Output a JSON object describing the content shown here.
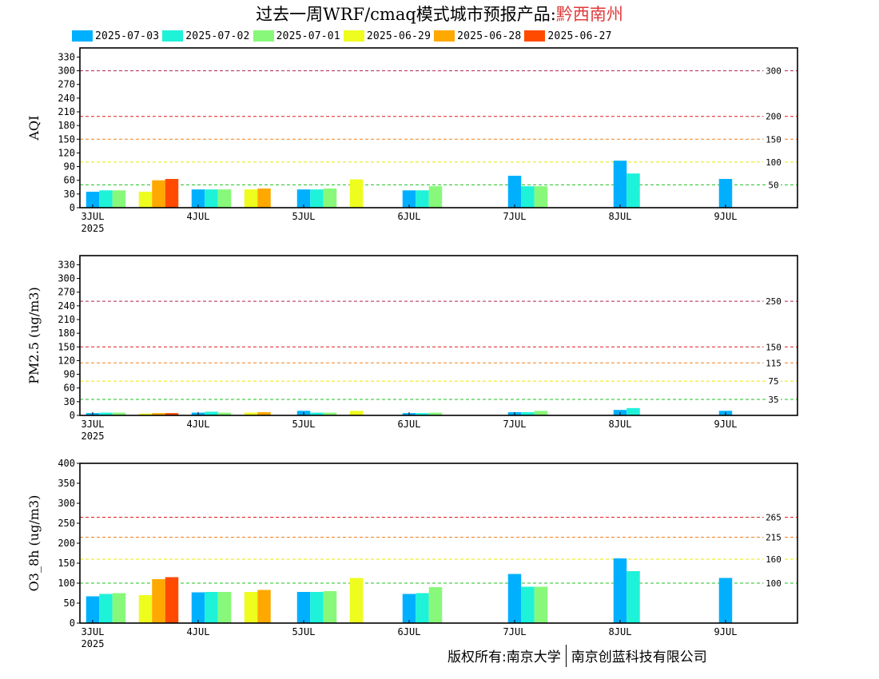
{
  "title": {
    "prefix": "过去一周WRF/cmaq模式城市预报产品:",
    "city": "黔西南州"
  },
  "legend": [
    {
      "label": "2025-07-03",
      "color": "#00b0ff"
    },
    {
      "label": "2025-07-02",
      "color": "#1ef2d8"
    },
    {
      "label": "2025-07-01",
      "color": "#88f87a"
    },
    {
      "label": "2025-06-29",
      "color": "#eefc1e"
    },
    {
      "label": "2025-06-28",
      "color": "#ffa800"
    },
    {
      "label": "2025-06-27",
      "color": "#ff4a00"
    }
  ],
  "x_ticks": [
    "3JUL",
    "4JUL",
    "5JUL",
    "6JUL",
    "7JUL",
    "8JUL",
    "9JUL"
  ],
  "x_year": "2025",
  "copyright": {
    "owner": "版权所有:南京大学",
    "company": "南京创蓝科技有限公司"
  },
  "chart_data": [
    {
      "type": "bar",
      "ylabel": "AQI",
      "ylim": [
        0,
        350
      ],
      "yticks": [
        0,
        30,
        60,
        90,
        120,
        150,
        180,
        210,
        240,
        270,
        300,
        330
      ],
      "thresholds": [
        {
          "value": 300,
          "label": "300",
          "color": "#b0205a"
        },
        {
          "value": 200,
          "label": "200",
          "color": "#e01c1c"
        },
        {
          "value": 150,
          "label": "150",
          "color": "#f08020"
        },
        {
          "value": 100,
          "label": "100",
          "color": "#e8e800"
        },
        {
          "value": 50,
          "label": "50",
          "color": "#20c020"
        }
      ],
      "groups": [
        {
          "x": "3JUL",
          "slot": 0,
          "bars": [
            {
              "series": "2025-07-03",
              "value": 35
            },
            {
              "series": "2025-07-02",
              "value": 38
            },
            {
              "series": "2025-07-01",
              "value": 38
            }
          ]
        },
        {
          "x": "3JUL",
          "slot": 1,
          "bars": [
            {
              "series": "2025-06-29",
              "value": 35
            },
            {
              "series": "2025-06-28",
              "value": 60
            },
            {
              "series": "2025-06-27",
              "value": 63
            }
          ]
        },
        {
          "x": "4JUL",
          "slot": 0,
          "bars": [
            {
              "series": "2025-07-03",
              "value": 40
            },
            {
              "series": "2025-07-02",
              "value": 40
            },
            {
              "series": "2025-07-01",
              "value": 40
            }
          ]
        },
        {
          "x": "4JUL",
          "slot": 1,
          "bars": [
            {
              "series": "2025-06-29",
              "value": 40
            },
            {
              "series": "2025-06-28",
              "value": 42
            }
          ]
        },
        {
          "x": "5JUL",
          "slot": 0,
          "bars": [
            {
              "series": "2025-07-03",
              "value": 40
            },
            {
              "series": "2025-07-02",
              "value": 40
            },
            {
              "series": "2025-07-01",
              "value": 42
            }
          ]
        },
        {
          "x": "5JUL",
          "slot": 1,
          "bars": [
            {
              "series": "2025-06-29",
              "value": 62
            }
          ]
        },
        {
          "x": "6JUL",
          "slot": 0,
          "bars": [
            {
              "series": "2025-07-03",
              "value": 38
            },
            {
              "series": "2025-07-02",
              "value": 38
            },
            {
              "series": "2025-07-01",
              "value": 47
            }
          ]
        },
        {
          "x": "7JUL",
          "slot": 0,
          "bars": [
            {
              "series": "2025-07-03",
              "value": 70
            },
            {
              "series": "2025-07-02",
              "value": 47
            },
            {
              "series": "2025-07-01",
              "value": 47
            }
          ]
        },
        {
          "x": "8JUL",
          "slot": 0,
          "bars": [
            {
              "series": "2025-07-03",
              "value": 103
            },
            {
              "series": "2025-07-02",
              "value": 75
            }
          ]
        },
        {
          "x": "9JUL",
          "slot": 0,
          "bars": [
            {
              "series": "2025-07-03",
              "value": 63
            }
          ]
        }
      ]
    },
    {
      "type": "bar",
      "ylabel": "PM2.5 (ug/m3)",
      "ylim": [
        0,
        350
      ],
      "yticks": [
        0,
        30,
        60,
        90,
        120,
        150,
        180,
        210,
        240,
        270,
        300,
        330
      ],
      "thresholds": [
        {
          "value": 250,
          "label": "250",
          "color": "#b0205a"
        },
        {
          "value": 150,
          "label": "150",
          "color": "#e01c1c"
        },
        {
          "value": 115,
          "label": "115",
          "color": "#f08020"
        },
        {
          "value": 75,
          "label": "75",
          "color": "#e8e800"
        },
        {
          "value": 35,
          "label": "35",
          "color": "#20c020"
        }
      ],
      "groups": [
        {
          "x": "3JUL",
          "slot": 0,
          "bars": [
            {
              "series": "2025-07-03",
              "value": 5
            },
            {
              "series": "2025-07-02",
              "value": 6
            },
            {
              "series": "2025-07-01",
              "value": 6
            }
          ]
        },
        {
          "x": "3JUL",
          "slot": 1,
          "bars": [
            {
              "series": "2025-06-29",
              "value": 4
            },
            {
              "series": "2025-06-28",
              "value": 5
            },
            {
              "series": "2025-06-27",
              "value": 5
            }
          ]
        },
        {
          "x": "4JUL",
          "slot": 0,
          "bars": [
            {
              "series": "2025-07-03",
              "value": 6
            },
            {
              "series": "2025-07-02",
              "value": 8
            },
            {
              "series": "2025-07-01",
              "value": 6
            }
          ]
        },
        {
          "x": "4JUL",
          "slot": 1,
          "bars": [
            {
              "series": "2025-06-29",
              "value": 6
            },
            {
              "series": "2025-06-28",
              "value": 7
            }
          ]
        },
        {
          "x": "5JUL",
          "slot": 0,
          "bars": [
            {
              "series": "2025-07-03",
              "value": 10
            },
            {
              "series": "2025-07-02",
              "value": 6
            },
            {
              "series": "2025-07-01",
              "value": 6
            }
          ]
        },
        {
          "x": "5JUL",
          "slot": 1,
          "bars": [
            {
              "series": "2025-06-29",
              "value": 10
            }
          ]
        },
        {
          "x": "6JUL",
          "slot": 0,
          "bars": [
            {
              "series": "2025-07-03",
              "value": 5
            },
            {
              "series": "2025-07-02",
              "value": 5
            },
            {
              "series": "2025-07-01",
              "value": 6
            }
          ]
        },
        {
          "x": "7JUL",
          "slot": 0,
          "bars": [
            {
              "series": "2025-07-03",
              "value": 7
            },
            {
              "series": "2025-07-02",
              "value": 7
            },
            {
              "series": "2025-07-01",
              "value": 10
            }
          ]
        },
        {
          "x": "8JUL",
          "slot": 0,
          "bars": [
            {
              "series": "2025-07-03",
              "value": 12
            },
            {
              "series": "2025-07-02",
              "value": 16
            }
          ]
        },
        {
          "x": "9JUL",
          "slot": 0,
          "bars": [
            {
              "series": "2025-07-03",
              "value": 10
            }
          ]
        }
      ]
    },
    {
      "type": "bar",
      "ylabel": "O3_8h (ug/m3)",
      "ylim": [
        0,
        400
      ],
      "yticks": [
        0,
        50,
        100,
        150,
        200,
        250,
        300,
        350,
        400
      ],
      "thresholds": [
        {
          "value": 265,
          "label": "265",
          "color": "#e01c1c"
        },
        {
          "value": 215,
          "label": "215",
          "color": "#f08020"
        },
        {
          "value": 160,
          "label": "160",
          "color": "#e8e800"
        },
        {
          "value": 100,
          "label": "100",
          "color": "#20c020"
        }
      ],
      "groups": [
        {
          "x": "3JUL",
          "slot": 0,
          "bars": [
            {
              "series": "2025-07-03",
              "value": 67
            },
            {
              "series": "2025-07-02",
              "value": 73
            },
            {
              "series": "2025-07-01",
              "value": 75
            }
          ]
        },
        {
          "x": "3JUL",
          "slot": 1,
          "bars": [
            {
              "series": "2025-06-29",
              "value": 70
            },
            {
              "series": "2025-06-28",
              "value": 110
            },
            {
              "series": "2025-06-27",
              "value": 115
            }
          ]
        },
        {
          "x": "4JUL",
          "slot": 0,
          "bars": [
            {
              "series": "2025-07-03",
              "value": 77
            },
            {
              "series": "2025-07-02",
              "value": 78
            },
            {
              "series": "2025-07-01",
              "value": 78
            }
          ]
        },
        {
          "x": "4JUL",
          "slot": 1,
          "bars": [
            {
              "series": "2025-06-29",
              "value": 78
            },
            {
              "series": "2025-06-28",
              "value": 83
            }
          ]
        },
        {
          "x": "5JUL",
          "slot": 0,
          "bars": [
            {
              "series": "2025-07-03",
              "value": 78
            },
            {
              "series": "2025-07-02",
              "value": 78
            },
            {
              "series": "2025-07-01",
              "value": 80
            }
          ]
        },
        {
          "x": "5JUL",
          "slot": 1,
          "bars": [
            {
              "series": "2025-06-29",
              "value": 113
            }
          ]
        },
        {
          "x": "6JUL",
          "slot": 0,
          "bars": [
            {
              "series": "2025-07-03",
              "value": 73
            },
            {
              "series": "2025-07-02",
              "value": 75
            },
            {
              "series": "2025-07-01",
              "value": 90
            }
          ]
        },
        {
          "x": "7JUL",
          "slot": 0,
          "bars": [
            {
              "series": "2025-07-03",
              "value": 123
            },
            {
              "series": "2025-07-02",
              "value": 91
            },
            {
              "series": "2025-07-01",
              "value": 91
            }
          ]
        },
        {
          "x": "8JUL",
          "slot": 0,
          "bars": [
            {
              "series": "2025-07-03",
              "value": 162
            },
            {
              "series": "2025-07-02",
              "value": 130
            }
          ]
        },
        {
          "x": "9JUL",
          "slot": 0,
          "bars": [
            {
              "series": "2025-07-03",
              "value": 113
            }
          ]
        }
      ]
    }
  ]
}
